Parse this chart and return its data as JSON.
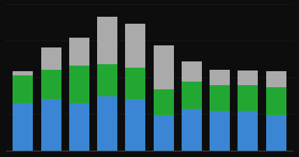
{
  "n_bars": 10,
  "blue_values": [
    48,
    52,
    48,
    55,
    52,
    36,
    42,
    40,
    40,
    36
  ],
  "green_values": [
    28,
    30,
    38,
    32,
    32,
    26,
    28,
    26,
    26,
    28
  ],
  "gray_values": [
    4,
    22,
    28,
    48,
    44,
    44,
    20,
    16,
    15,
    16
  ],
  "blue_color": "#3a86d4",
  "green_color": "#22a832",
  "gray_color": "#aaaaaa",
  "bg_color": "#0d0d0d",
  "grid_color": "#3a3a3a",
  "bar_width": 0.72,
  "ylim": [
    0,
    148
  ]
}
